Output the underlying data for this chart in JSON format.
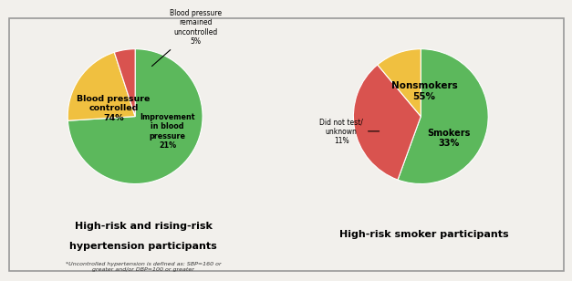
{
  "pie1": {
    "values": [
      74,
      21,
      5
    ],
    "colors": [
      "#5cb85c",
      "#f0c040",
      "#d9534f"
    ],
    "startangle": 90,
    "title_line1": "High-risk and rising-risk",
    "title_line2": "hypertension participants",
    "footnote": "*Uncontrolled hypertension is defined as: SBP=160 or\ngreater and/or DBP=100 or greater"
  },
  "pie2": {
    "values": [
      55,
      33,
      11
    ],
    "colors": [
      "#5cb85c",
      "#d9534f",
      "#f0c040"
    ],
    "startangle": 90,
    "title": "High-risk smoker participants"
  },
  "bg_color": "#f2f0ec",
  "border_color": "#999999",
  "white": "#ffffff"
}
